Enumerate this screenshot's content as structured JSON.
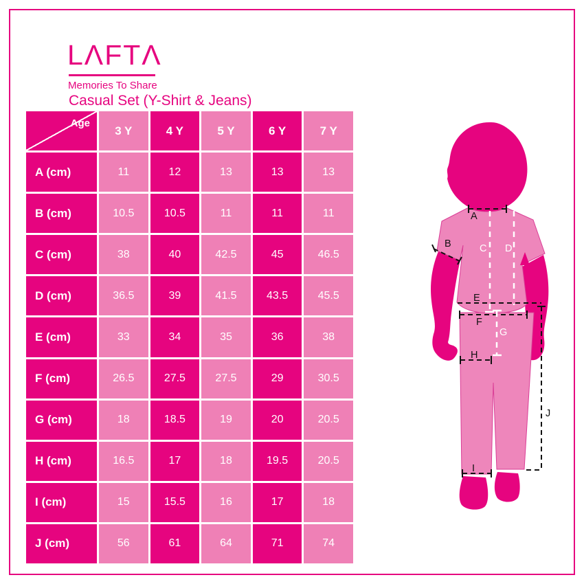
{
  "brand": {
    "logo": "LΛFTΛ",
    "tagline": "Memories To Share"
  },
  "title": "Casual Set (Y-Shirt & Jeans)",
  "size_table": {
    "corner_label": "Age",
    "columns": [
      "3 Y",
      "4 Y",
      "5 Y",
      "6 Y",
      "7 Y"
    ],
    "rows": [
      {
        "label": "A (cm)",
        "values": [
          "11",
          "12",
          "13",
          "13",
          "13"
        ]
      },
      {
        "label": "B (cm)",
        "values": [
          "10.5",
          "10.5",
          "11",
          "11",
          "11"
        ]
      },
      {
        "label": "C (cm)",
        "values": [
          "38",
          "40",
          "42.5",
          "45",
          "46.5"
        ]
      },
      {
        "label": "D (cm)",
        "values": [
          "36.5",
          "39",
          "41.5",
          "43.5",
          "45.5"
        ]
      },
      {
        "label": "E (cm)",
        "values": [
          "33",
          "34",
          "35",
          "36",
          "38"
        ]
      },
      {
        "label": "F (cm)",
        "values": [
          "26.5",
          "27.5",
          "27.5",
          "29",
          "30.5"
        ]
      },
      {
        "label": "G (cm)",
        "values": [
          "18",
          "18.5",
          "19",
          "20",
          "20.5"
        ]
      },
      {
        "label": "H (cm)",
        "values": [
          "16.5",
          "17",
          "18",
          "19.5",
          "20.5"
        ]
      },
      {
        "label": "I (cm)",
        "values": [
          "15",
          "15.5",
          "16",
          "17",
          "18"
        ]
      },
      {
        "label": "J (cm)",
        "values": [
          "56",
          "61",
          "64",
          "71",
          "74"
        ]
      }
    ]
  },
  "figure": {
    "measurement_labels": [
      "A",
      "B",
      "C",
      "D",
      "E",
      "F",
      "G",
      "H",
      "I",
      "J"
    ]
  },
  "colors": {
    "magenta": "#E6047F",
    "light_pink": "#EF80B6",
    "garment_pink": "#EE86BB",
    "garment_outline": "#DA3D96",
    "annotation_black": "#111111",
    "text_white": "#FFFFFF"
  }
}
